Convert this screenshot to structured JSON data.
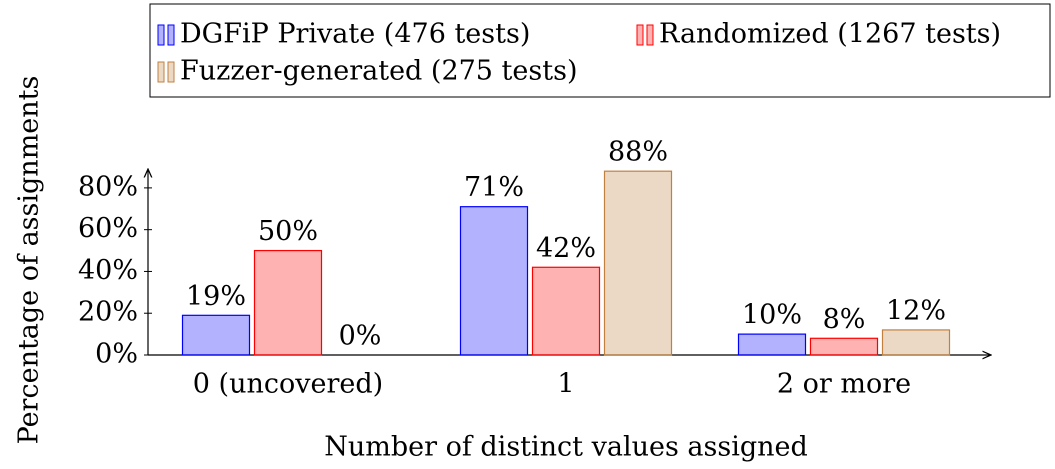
{
  "chart_data": {
    "type": "bar",
    "x_label": "Number of distinct values assigned",
    "y_label": "Percentage of assignments",
    "categories": [
      "0 (uncovered)",
      "1",
      "2 or more"
    ],
    "series": [
      {
        "name": "DGFiP Private (476 tests)",
        "color": "#0000ff",
        "values": [
          19,
          71,
          10
        ],
        "value_labels": [
          "19%",
          "71%",
          "10%"
        ]
      },
      {
        "name": "Randomized (1267 tests)",
        "color": "#ff0000",
        "values": [
          50,
          42,
          8
        ],
        "value_labels": [
          "50%",
          "42%",
          "8%"
        ]
      },
      {
        "name": "Fuzzer-generated (275 tests)",
        "color": "#bf8040",
        "values": [
          0,
          88,
          12
        ],
        "value_labels": [
          "0%",
          "88%",
          "12%"
        ]
      }
    ],
    "ylim": [
      0,
      90
    ],
    "yticks": [
      {
        "value": 0,
        "label": "0%"
      },
      {
        "value": 20,
        "label": "20%"
      },
      {
        "value": 40,
        "label": "40%"
      },
      {
        "value": 60,
        "label": "60%"
      },
      {
        "value": 80,
        "label": "80%"
      }
    ],
    "legend": "top"
  }
}
